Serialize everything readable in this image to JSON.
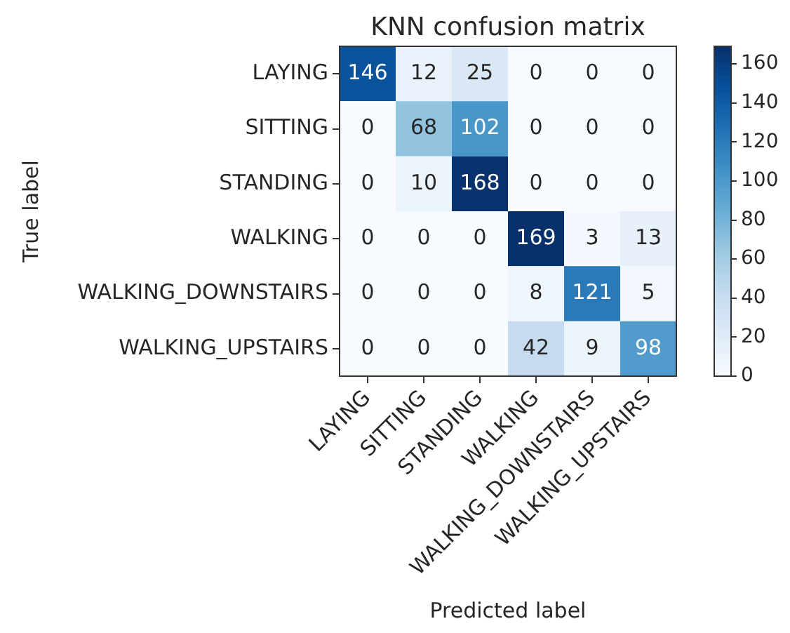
{
  "chart_data": {
    "type": "heatmap",
    "title": "KNN confusion matrix",
    "xlabel": "Predicted label",
    "ylabel": "True label",
    "categories": [
      "LAYING",
      "SITTING",
      "STANDING",
      "WALKING",
      "WALKING_DOWNSTAIRS",
      "WALKING_UPSTAIRS"
    ],
    "y_categories": [
      "LAYING",
      "SITTING",
      "STANDING",
      "WALKING",
      "WALKING_DOWNSTAIRS",
      "WALKING_UPSTAIRS"
    ],
    "cells": [
      [
        146,
        12,
        25,
        0,
        0,
        0
      ],
      [
        0,
        68,
        102,
        0,
        0,
        0
      ],
      [
        0,
        10,
        168,
        0,
        0,
        0
      ],
      [
        0,
        0,
        0,
        169,
        3,
        13
      ],
      [
        0,
        0,
        0,
        8,
        121,
        5
      ],
      [
        0,
        0,
        0,
        42,
        9,
        98
      ]
    ],
    "clim": [
      0,
      169
    ],
    "cticks": [
      0,
      20,
      40,
      60,
      80,
      100,
      120,
      140,
      160
    ],
    "data_labels": true
  }
}
